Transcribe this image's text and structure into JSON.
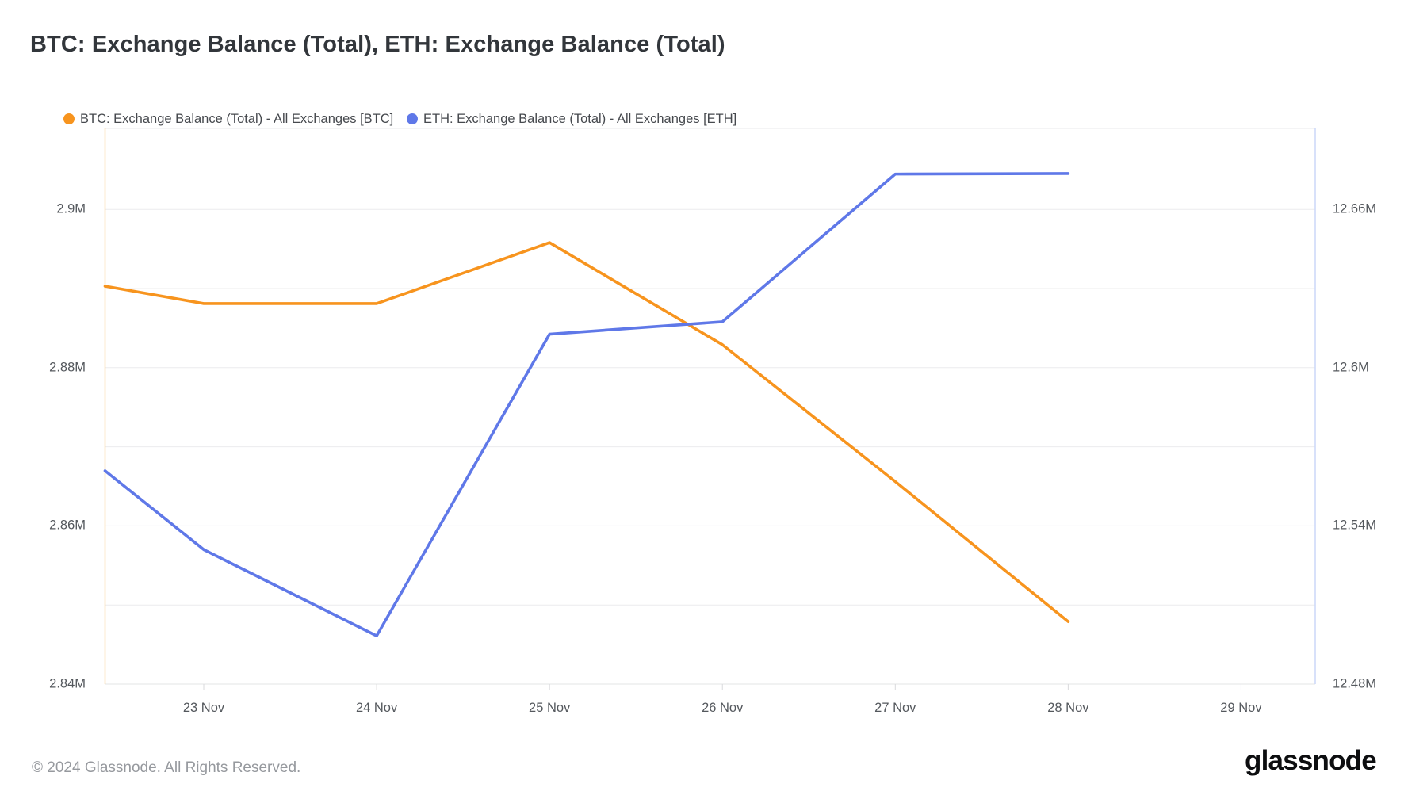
{
  "title": "BTC: Exchange Balance (Total), ETH: Exchange Balance (Total)",
  "legend": [
    {
      "label": "BTC: Exchange Balance (Total) - All Exchanges [BTC]",
      "color": "#f7941e"
    },
    {
      "label": "ETH: Exchange Balance (Total) - All Exchanges [ETH]",
      "color": "#5f78e8"
    }
  ],
  "footer": {
    "copyright": "© 2024 Glassnode. All Rights Reserved.",
    "brand": "glassnode"
  },
  "colors": {
    "btc_line": "#f7941e",
    "eth_line": "#5f78e8",
    "gridline": "#ececee",
    "plot_border_top": "#e8e9eb",
    "plot_border_bottom": "#e3e4e6",
    "left_axis_line": "#f9d7a4",
    "right_axis_line": "#ccd7f8",
    "tick": "#d9dadc"
  },
  "chart_data": {
    "type": "line",
    "title": "BTC: Exchange Balance (Total), ETH: Exchange Balance (Total)",
    "grid": true,
    "legend_position": "top-left",
    "x_tick_labels": [
      "23 Nov",
      "24 Nov",
      "25 Nov",
      "26 Nov",
      "27 Nov",
      "28 Nov",
      "29 Nov"
    ],
    "x_tick_days": [
      0,
      1,
      2,
      3,
      4,
      5,
      6
    ],
    "x_range_days": [
      -0.571,
      6.429
    ],
    "left_axis": {
      "unit": "BTC",
      "ylim": [
        2.84,
        2.91024
      ],
      "tick_labels": [
        "2.9M",
        "2.88M",
        "2.86M",
        "2.84M"
      ],
      "tick_values": [
        2.9,
        2.88,
        2.86,
        2.84
      ],
      "grid_values": [
        2.85,
        2.86,
        2.87,
        2.88,
        2.89,
        2.9
      ]
    },
    "right_axis": {
      "unit": "ETH",
      "ylim": [
        12.48,
        12.69072
      ],
      "tick_labels": [
        "12.66M",
        "12.6M",
        "12.54M",
        "12.48M"
      ],
      "tick_values": [
        12.66,
        12.6,
        12.54,
        12.48
      ]
    },
    "series": [
      {
        "name": "BTC: Exchange Balance (Total) - All Exchanges [BTC]",
        "axis": "left",
        "color": "#f7941e",
        "x_days": [
          -0.571,
          0,
          1,
          2,
          3,
          4,
          5
        ],
        "dates": [
          "22 Nov",
          "23 Nov",
          "24 Nov",
          "25 Nov",
          "26 Nov",
          "27 Nov",
          "28 Nov"
        ],
        "values_m": [
          2.8903,
          2.8881,
          2.8881,
          2.8958,
          2.8829,
          2.8656,
          2.8479
        ]
      },
      {
        "name": "ETH: Exchange Balance (Total) - All Exchanges [ETH]",
        "axis": "right",
        "color": "#5f78e8",
        "x_days": [
          -0.571,
          0,
          1,
          2,
          3,
          4,
          5
        ],
        "dates": [
          "22 Nov",
          "23 Nov",
          "24 Nov",
          "25 Nov",
          "26 Nov",
          "27 Nov",
          "28 Nov"
        ],
        "values_m": [
          12.5609,
          12.531,
          12.4983,
          12.6127,
          12.6174,
          12.6734,
          12.6736
        ]
      }
    ]
  }
}
